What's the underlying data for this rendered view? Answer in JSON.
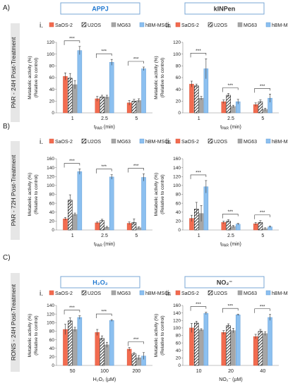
{
  "sections": [
    {
      "label": "A)",
      "side": "PAR - 24H Post-Treatment"
    },
    {
      "label": "B)",
      "side": "PAR - 72H Post-Treatment"
    },
    {
      "label": "C)",
      "side": "RONS - 24H Post-Treatment"
    }
  ],
  "headers": [
    {
      "text": "APPJ",
      "accent": "#1f78d1"
    },
    {
      "text": "kINPen",
      "accent": "#333333"
    },
    {
      "text": "H₂O₂",
      "accent": "#1f78d1"
    },
    {
      "text": "NO₂⁻",
      "accent": "#333333"
    }
  ],
  "legend_items": [
    "SaOS-2",
    "U2OS",
    "MG63",
    "hBM-MSCs"
  ],
  "colors": {
    "SaOS-2": "#f26b4f",
    "U2OS": "hatch",
    "MG63": "#a6a6a6",
    "hBM-MSCs": "#8cc0f0",
    "header_border": "#7aa7d6"
  },
  "ylabel": "Metabolic activity (%)\n(Relative to control)",
  "sig_label": "***",
  "chart_data": [
    {
      "panel": "i.",
      "type": "bar",
      "xlabel": "t_PAR (min)",
      "categories": [
        "1",
        "2.5",
        "5"
      ],
      "ylim": [
        0,
        120
      ],
      "yticks": [
        0,
        20,
        40,
        60,
        80,
        100,
        120
      ],
      "series": [
        {
          "name": "SaOS-2",
          "values": [
            62,
            24,
            17
          ]
        },
        {
          "name": "U2OS",
          "values": [
            59,
            27,
            20
          ]
        },
        {
          "name": "MG63",
          "values": [
            48,
            27,
            21
          ]
        },
        {
          "name": "hBM-MSCs",
          "values": [
            106,
            86,
            75
          ]
        }
      ],
      "errors": [
        [
          6,
          4,
          4
        ],
        [
          8,
          3,
          3
        ],
        [
          7,
          3,
          3
        ],
        [
          7,
          5,
          3
        ]
      ]
    },
    {
      "panel": "ii.",
      "type": "bar",
      "xlabel": "t_PAR (min)",
      "categories": [
        "1",
        "2.5",
        "5"
      ],
      "ylim": [
        0,
        120
      ],
      "yticks": [
        0,
        20,
        40,
        60,
        80,
        100,
        120
      ],
      "series": [
        {
          "name": "SaOS-2",
          "values": [
            49,
            19,
            14
          ]
        },
        {
          "name": "U2OS",
          "values": [
            46,
            30,
            19
          ]
        },
        {
          "name": "MG63",
          "values": [
            25,
            11,
            6
          ]
        },
        {
          "name": "hBM-MSCs",
          "values": [
            75,
            19,
            25
          ]
        }
      ],
      "errors": [
        [
          5,
          3,
          3
        ],
        [
          3,
          3,
          3
        ],
        [
          3,
          2,
          2
        ],
        [
          17,
          4,
          7
        ]
      ]
    },
    {
      "panel": "i.",
      "type": "bar",
      "xlabel": "t_PAR (min)",
      "categories": [
        "1",
        "2.5",
        "5"
      ],
      "ylim": [
        0,
        160
      ],
      "yticks": [
        0,
        20,
        40,
        60,
        80,
        100,
        120,
        140,
        160
      ],
      "series": [
        {
          "name": "SaOS-2",
          "values": [
            25,
            16,
            15
          ]
        },
        {
          "name": "U2OS",
          "values": [
            67,
            21,
            17
          ]
        },
        {
          "name": "MG63",
          "values": [
            35,
            6,
            5
          ]
        },
        {
          "name": "hBM-MSCs",
          "values": [
            131,
            119,
            118
          ]
        }
      ],
      "errors": [
        [
          3,
          2,
          3
        ],
        [
          12,
          3,
          8
        ],
        [
          3,
          2,
          2
        ],
        [
          6,
          5,
          8
        ]
      ]
    },
    {
      "panel": "ii.",
      "type": "bar",
      "xlabel": "t_PAR (min)",
      "categories": [
        "1",
        "2.5",
        "5"
      ],
      "ylim": [
        0,
        160
      ],
      "yticks": [
        0,
        20,
        40,
        60,
        80,
        100,
        120,
        140,
        160
      ],
      "series": [
        {
          "name": "SaOS-2",
          "values": [
            26,
            17,
            14
          ]
        },
        {
          "name": "U2OS",
          "values": [
            47,
            20,
            17
          ]
        },
        {
          "name": "MG63",
          "values": [
            37,
            8,
            3
          ]
        },
        {
          "name": "hBM-MSCs",
          "values": [
            97,
            13,
            7
          ]
        }
      ],
      "errors": [
        [
          7,
          3,
          3
        ],
        [
          15,
          3,
          4
        ],
        [
          18,
          2,
          2
        ],
        [
          14,
          2,
          2
        ]
      ]
    },
    {
      "panel": "i.",
      "type": "bar",
      "xlabel": "H₂O₂ (µM)",
      "categories": [
        "50",
        "100",
        "200"
      ],
      "ylim": [
        0,
        140
      ],
      "yticks": [
        0,
        20,
        40,
        60,
        80,
        100,
        120,
        140
      ],
      "series": [
        {
          "name": "SaOS-2",
          "values": [
            84,
            77,
            38
          ]
        },
        {
          "name": "U2OS",
          "values": [
            104,
            63,
            27
          ]
        },
        {
          "name": "MG63",
          "values": [
            84,
            48,
            18
          ]
        },
        {
          "name": "hBM-MSCs",
          "values": [
            112,
            105,
            22
          ]
        }
      ],
      "errors": [
        [
          12,
          7,
          4
        ],
        [
          7,
          6,
          3
        ],
        [
          5,
          6,
          5
        ],
        [
          4,
          2,
          8
        ]
      ]
    },
    {
      "panel": "ii.",
      "type": "bar",
      "xlabel": "NO₂⁻ (µM)",
      "categories": [
        "10",
        "20",
        "40"
      ],
      "ylim": [
        0,
        160
      ],
      "yticks": [
        0,
        20,
        40,
        60,
        80,
        100,
        120,
        140,
        160
      ],
      "series": [
        {
          "name": "SaOS-2",
          "values": [
            100,
            88,
            77
          ]
        },
        {
          "name": "U2OS",
          "values": [
            113,
            106,
            91
          ]
        },
        {
          "name": "MG63",
          "values": [
            95,
            93,
            85
          ]
        },
        {
          "name": "hBM-MSCs",
          "values": [
            139,
            135,
            128
          ]
        }
      ],
      "errors": [
        [
          12,
          5,
          6
        ],
        [
          5,
          5,
          5
        ],
        [
          3,
          6,
          5
        ],
        [
          3,
          2,
          8
        ]
      ]
    }
  ]
}
